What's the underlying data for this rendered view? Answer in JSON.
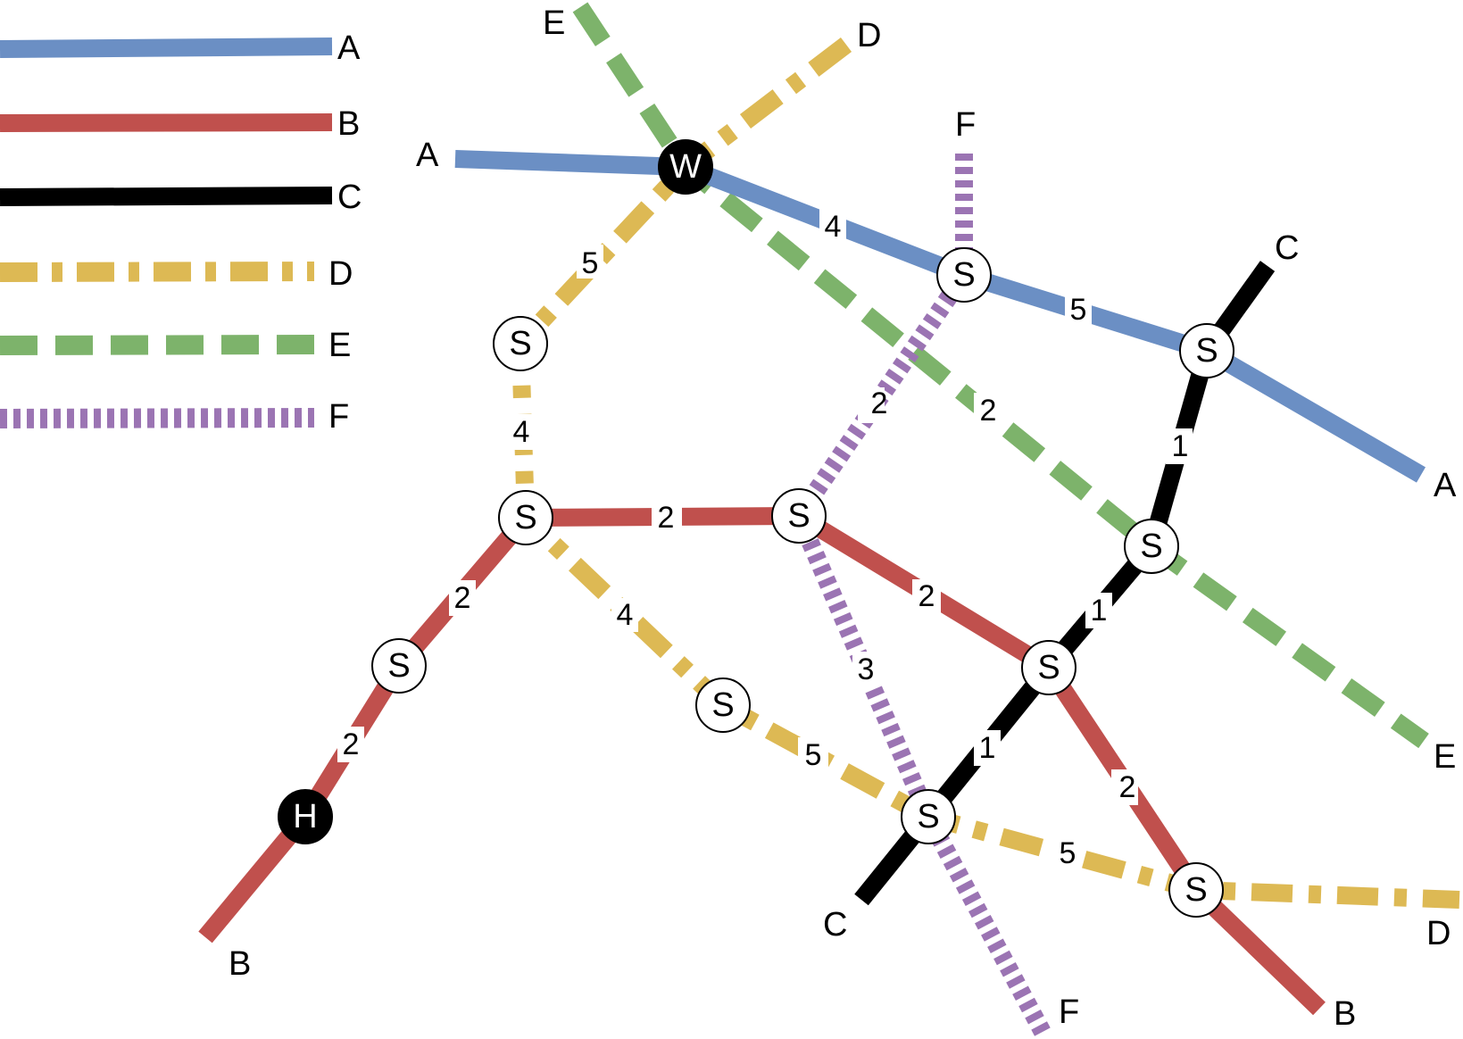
{
  "legend": [
    {
      "line": "A",
      "label": "A",
      "color": "#6b8fc4",
      "style": "solid"
    },
    {
      "line": "B",
      "label": "B",
      "color": "#c0504d",
      "style": "solid"
    },
    {
      "line": "C",
      "label": "C",
      "color": "#000000",
      "style": "solid"
    },
    {
      "line": "D",
      "label": "D",
      "color": "#ddb954",
      "style": "dash-dot"
    },
    {
      "line": "E",
      "label": "E",
      "color": "#7db36b",
      "style": "dashed"
    },
    {
      "line": "F",
      "label": "F",
      "color": "#9b74b3",
      "style": "dotted"
    }
  ],
  "endpoint_labels": {
    "a_west": "A",
    "a_east": "A",
    "b_south_west": "B",
    "b_south_east": "B",
    "c_north": "C",
    "c_south": "C",
    "d_north": "D",
    "d_east": "D",
    "e_north": "E",
    "e_east": "E",
    "f_north": "F",
    "f_south": "F"
  },
  "nodes": {
    "W": "W",
    "H": "H",
    "S1": "S",
    "S2": "S",
    "S3": "S",
    "S4": "S",
    "S5": "S",
    "S6": "S",
    "S7": "S",
    "S8": "S",
    "S9": "S",
    "S10": "S",
    "S11": "S",
    "S12": "S"
  },
  "weights": {
    "a_w_s6": "4",
    "a_s6_s7": "5",
    "b_s2_s3": "2",
    "b_s2_s4": "2",
    "b_s4_h": "2",
    "b_s3_s9": "2",
    "b_s9_s12": "2",
    "c_s7_s8": "1",
    "c_s8_s9": "1",
    "c_s9_s11": "1",
    "d_w_s1": "5",
    "d_s1_s2": "4",
    "d_s2_s5": "4",
    "d_s5_s11": "5",
    "d_s11_s12": "5",
    "e_w_s8": "2",
    "f_s6_s3": "2",
    "f_s3_s11": "3"
  }
}
